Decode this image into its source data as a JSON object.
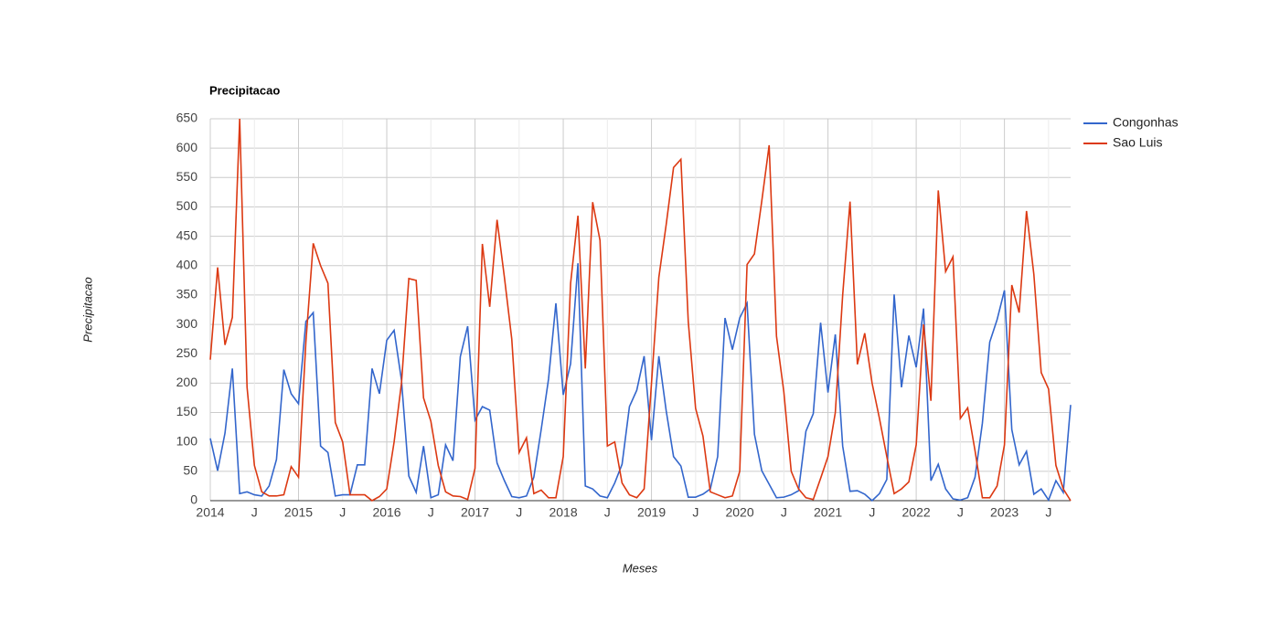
{
  "chart_data": {
    "type": "line",
    "title": "Precipitacao",
    "x_label": "Meses",
    "y_label": "Precipitacao",
    "categories": [
      "2014",
      null,
      null,
      null,
      null,
      null,
      "J",
      null,
      null,
      null,
      null,
      null,
      "2015",
      null,
      null,
      null,
      null,
      null,
      "J",
      null,
      null,
      null,
      null,
      null,
      "2016",
      null,
      null,
      null,
      null,
      null,
      "J",
      null,
      null,
      null,
      null,
      null,
      "2017",
      null,
      null,
      null,
      null,
      null,
      "J",
      null,
      null,
      null,
      null,
      null,
      "2018",
      null,
      null,
      null,
      null,
      null,
      "J",
      null,
      null,
      null,
      null,
      null,
      "2019",
      null,
      null,
      null,
      null,
      null,
      "J",
      null,
      null,
      null,
      null,
      null,
      "2020",
      null,
      null,
      null,
      null,
      null,
      "J",
      null,
      null,
      null,
      null,
      null,
      "2021",
      null,
      null,
      null,
      null,
      null,
      "J",
      null,
      null,
      null,
      null,
      null,
      "2022",
      null,
      null,
      null,
      null,
      null,
      "J",
      null,
      null,
      null,
      null,
      null,
      "2023",
      null,
      null,
      null,
      null,
      null,
      "J",
      null,
      null,
      null
    ],
    "series": [
      {
        "name": "Congonhas",
        "color": "#3366cc",
        "values": [
          106,
          51,
          115,
          225,
          12,
          15,
          10,
          8,
          25,
          70,
          223,
          182,
          165,
          305,
          320,
          93,
          82,
          8,
          10,
          10,
          61,
          61,
          225,
          182,
          273,
          290,
          205,
          42,
          14,
          93,
          5,
          10,
          95,
          68,
          245,
          297,
          137,
          160,
          154,
          64,
          34,
          7,
          5,
          8,
          40,
          121,
          207,
          336,
          180,
          233,
          404,
          25,
          20,
          8,
          5,
          30,
          62,
          160,
          188,
          246,
          103,
          246,
          153,
          75,
          59,
          6,
          6,
          11,
          20,
          75,
          311,
          257,
          311,
          336,
          113,
          51,
          28,
          5,
          6,
          10,
          17,
          118,
          148,
          303,
          184,
          283,
          93,
          16,
          17,
          11,
          0,
          12,
          36,
          351,
          193,
          281,
          227,
          327,
          34,
          62,
          20,
          3,
          1,
          5,
          40,
          132,
          270,
          308,
          358,
          121,
          61,
          84,
          11,
          20,
          1,
          34,
          14,
          163
        ]
      },
      {
        "name": "Sao Luis",
        "color": "#dc3912",
        "values": [
          240,
          397,
          265,
          312,
          650,
          193,
          60,
          15,
          8,
          8,
          10,
          58,
          40,
          270,
          438,
          400,
          370,
          133,
          100,
          10,
          10,
          10,
          0,
          7,
          20,
          100,
          200,
          378,
          375,
          175,
          135,
          60,
          15,
          8,
          7,
          2,
          55,
          437,
          330,
          478,
          380,
          275,
          82,
          107,
          12,
          18,
          5,
          5,
          75,
          370,
          485,
          225,
          508,
          443,
          93,
          100,
          30,
          10,
          5,
          20,
          200,
          380,
          470,
          567,
          581,
          305,
          157,
          110,
          15,
          10,
          5,
          8,
          50,
          402,
          420,
          510,
          605,
          280,
          185,
          50,
          20,
          5,
          2,
          38,
          75,
          150,
          350,
          509,
          232,
          285,
          200,
          140,
          75,
          12,
          20,
          32,
          95,
          300,
          170,
          528,
          390,
          415,
          140,
          158,
          85,
          5,
          5,
          25,
          95,
          367,
          320,
          493,
          385,
          218,
          190,
          60,
          20,
          0
        ]
      }
    ],
    "ylim": [
      0,
      650
    ],
    "yticks": [
      0,
      50,
      100,
      150,
      200,
      250,
      300,
      350,
      400,
      450,
      500,
      550,
      600,
      650
    ],
    "grid": true,
    "legend": "right"
  }
}
